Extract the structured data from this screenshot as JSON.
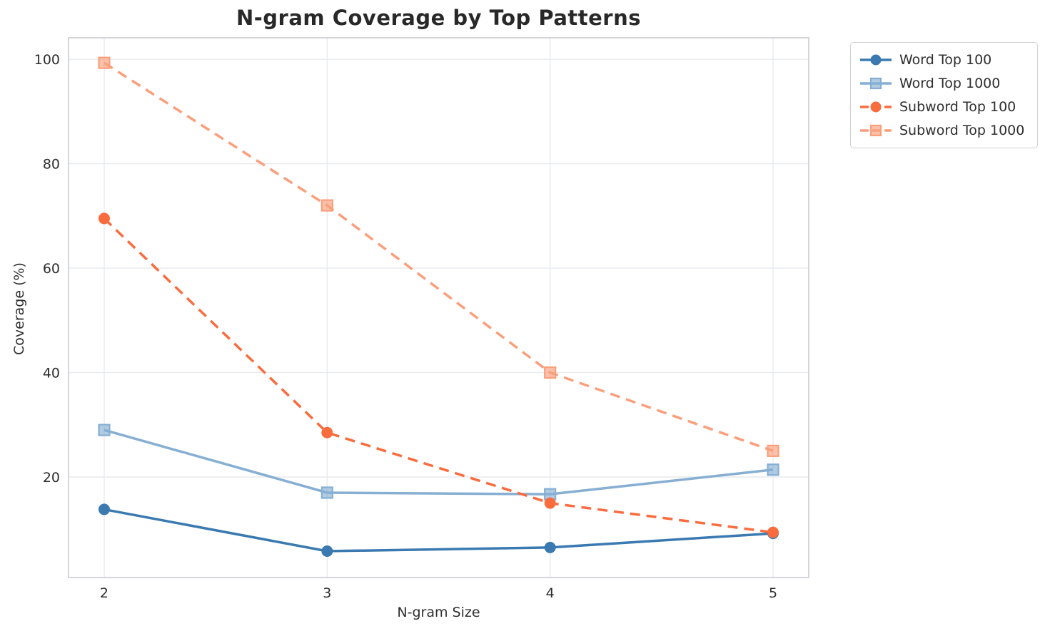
{
  "chart_data": {
    "type": "line",
    "title": "N-gram Coverage by Top Patterns",
    "xlabel": "N-gram Size",
    "ylabel": "Coverage (%)",
    "x": [
      2,
      3,
      4,
      5
    ],
    "xticks": [
      "2",
      "3",
      "4",
      "5"
    ],
    "yticks": [
      20,
      40,
      60,
      80,
      100
    ],
    "xlim": [
      1.84,
      5.16
    ],
    "ylim": [
      0.75,
      104.1
    ],
    "grid": true,
    "legend_position": "outside-top-right",
    "series": [
      {
        "name": "Word Top 100",
        "values": [
          13.8,
          5.8,
          6.5,
          9.2
        ],
        "color": "#3a7ab0",
        "marker": "circle",
        "dash": false
      },
      {
        "name": "Word Top 1000",
        "values": [
          29.0,
          17.0,
          16.7,
          21.4
        ],
        "color": "#86afd3",
        "marker": "square",
        "dash": false
      },
      {
        "name": "Subword Top 100",
        "values": [
          69.5,
          28.5,
          15.0,
          9.4
        ],
        "color": "#f96c3e",
        "marker": "circle",
        "dash": true
      },
      {
        "name": "Subword Top 1000",
        "values": [
          99.3,
          72.0,
          40.0,
          25.0
        ],
        "color": "#fa9f7c",
        "marker": "square",
        "dash": true
      }
    ],
    "colors": {
      "grid": "#e8eaee",
      "spine": "#c9ccd3",
      "title_text": "#282828",
      "tick_text": "#2e2e2e",
      "background": "#ffffff"
    }
  }
}
